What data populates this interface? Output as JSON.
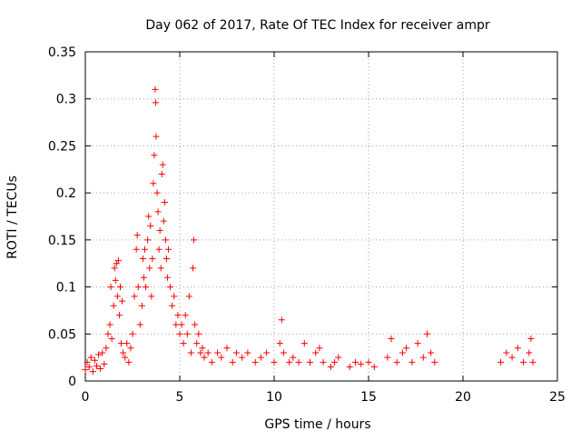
{
  "chart_data": {
    "type": "scatter",
    "title": "Day 062 of 2017, Rate Of TEC Index for receiver ampr",
    "xlabel": "GPS time / hours",
    "ylabel": "ROTI / TECUs",
    "xlim": [
      0,
      25
    ],
    "ylim": [
      0,
      0.35
    ],
    "grid": true,
    "marker": "plus",
    "color": "#ff0000",
    "x_ticks": [
      {
        "value": 0,
        "label": "0"
      },
      {
        "value": 5,
        "label": "5"
      },
      {
        "value": 10,
        "label": "10"
      },
      {
        "value": 15,
        "label": "15"
      },
      {
        "value": 20,
        "label": "20"
      },
      {
        "value": 25,
        "label": "25"
      }
    ],
    "y_ticks": [
      {
        "value": 0,
        "label": "0"
      },
      {
        "value": 0.05,
        "label": "0.05"
      },
      {
        "value": 0.1,
        "label": "0.1"
      },
      {
        "value": 0.15,
        "label": "0.15"
      },
      {
        "value": 0.2,
        "label": "0.2"
      },
      {
        "value": 0.25,
        "label": "0.25"
      },
      {
        "value": 0.3,
        "label": "0.3"
      },
      {
        "value": 0.35,
        "label": "0.35"
      }
    ],
    "points": [
      [
        0.0,
        0.012
      ],
      [
        0.1,
        0.02
      ],
      [
        0.2,
        0.015
      ],
      [
        0.3,
        0.025
      ],
      [
        0.4,
        0.01
      ],
      [
        0.5,
        0.022
      ],
      [
        0.6,
        0.016
      ],
      [
        0.7,
        0.028
      ],
      [
        0.8,
        0.013
      ],
      [
        0.9,
        0.03
      ],
      [
        1.0,
        0.018
      ],
      [
        1.1,
        0.035
      ],
      [
        1.2,
        0.05
      ],
      [
        1.3,
        0.06
      ],
      [
        1.35,
        0.1
      ],
      [
        1.4,
        0.045
      ],
      [
        1.5,
        0.08
      ],
      [
        1.55,
        0.12
      ],
      [
        1.6,
        0.107
      ],
      [
        1.65,
        0.125
      ],
      [
        1.7,
        0.09
      ],
      [
        1.75,
        0.128
      ],
      [
        1.8,
        0.07
      ],
      [
        1.85,
        0.1
      ],
      [
        1.9,
        0.04
      ],
      [
        1.95,
        0.085
      ],
      [
        2.0,
        0.03
      ],
      [
        2.1,
        0.025
      ],
      [
        2.2,
        0.04
      ],
      [
        2.3,
        0.02
      ],
      [
        2.4,
        0.035
      ],
      [
        2.5,
        0.05
      ],
      [
        2.6,
        0.09
      ],
      [
        2.7,
        0.14
      ],
      [
        2.75,
        0.155
      ],
      [
        2.8,
        0.1
      ],
      [
        2.9,
        0.06
      ],
      [
        3.0,
        0.08
      ],
      [
        3.05,
        0.13
      ],
      [
        3.1,
        0.11
      ],
      [
        3.15,
        0.14
      ],
      [
        3.2,
        0.1
      ],
      [
        3.3,
        0.15
      ],
      [
        3.35,
        0.175
      ],
      [
        3.4,
        0.12
      ],
      [
        3.45,
        0.165
      ],
      [
        3.5,
        0.09
      ],
      [
        3.55,
        0.13
      ],
      [
        3.6,
        0.21
      ],
      [
        3.65,
        0.24
      ],
      [
        3.7,
        0.31
      ],
      [
        3.72,
        0.296
      ],
      [
        3.75,
        0.26
      ],
      [
        3.8,
        0.2
      ],
      [
        3.85,
        0.18
      ],
      [
        3.9,
        0.14
      ],
      [
        3.95,
        0.16
      ],
      [
        4.0,
        0.12
      ],
      [
        4.05,
        0.22
      ],
      [
        4.1,
        0.23
      ],
      [
        4.15,
        0.17
      ],
      [
        4.2,
        0.19
      ],
      [
        4.25,
        0.15
      ],
      [
        4.3,
        0.13
      ],
      [
        4.35,
        0.11
      ],
      [
        4.4,
        0.14
      ],
      [
        4.5,
        0.1
      ],
      [
        4.6,
        0.08
      ],
      [
        4.7,
        0.09
      ],
      [
        4.8,
        0.06
      ],
      [
        4.9,
        0.07
      ],
      [
        5.0,
        0.05
      ],
      [
        5.1,
        0.06
      ],
      [
        5.2,
        0.04
      ],
      [
        5.3,
        0.07
      ],
      [
        5.4,
        0.05
      ],
      [
        5.5,
        0.09
      ],
      [
        5.6,
        0.03
      ],
      [
        5.7,
        0.12
      ],
      [
        5.75,
        0.15
      ],
      [
        5.8,
        0.06
      ],
      [
        5.9,
        0.04
      ],
      [
        6.0,
        0.05
      ],
      [
        6.1,
        0.03
      ],
      [
        6.2,
        0.035
      ],
      [
        6.3,
        0.025
      ],
      [
        6.5,
        0.03
      ],
      [
        6.7,
        0.02
      ],
      [
        7.0,
        0.03
      ],
      [
        7.2,
        0.025
      ],
      [
        7.5,
        0.035
      ],
      [
        7.8,
        0.02
      ],
      [
        8.0,
        0.03
      ],
      [
        8.3,
        0.025
      ],
      [
        8.6,
        0.03
      ],
      [
        9.0,
        0.02
      ],
      [
        9.3,
        0.025
      ],
      [
        9.6,
        0.03
      ],
      [
        10.0,
        0.02
      ],
      [
        10.3,
        0.04
      ],
      [
        10.4,
        0.065
      ],
      [
        10.5,
        0.03
      ],
      [
        10.8,
        0.02
      ],
      [
        11.0,
        0.025
      ],
      [
        11.3,
        0.02
      ],
      [
        11.6,
        0.04
      ],
      [
        11.9,
        0.02
      ],
      [
        12.2,
        0.03
      ],
      [
        12.4,
        0.035
      ],
      [
        12.6,
        0.02
      ],
      [
        13.0,
        0.015
      ],
      [
        13.2,
        0.02
      ],
      [
        13.4,
        0.025
      ],
      [
        14.0,
        0.015
      ],
      [
        14.3,
        0.02
      ],
      [
        14.6,
        0.018
      ],
      [
        15.0,
        0.02
      ],
      [
        15.3,
        0.015
      ],
      [
        16.0,
        0.025
      ],
      [
        16.2,
        0.045
      ],
      [
        16.5,
        0.02
      ],
      [
        16.8,
        0.03
      ],
      [
        17.0,
        0.035
      ],
      [
        17.3,
        0.02
      ],
      [
        17.6,
        0.04
      ],
      [
        17.9,
        0.025
      ],
      [
        18.1,
        0.05
      ],
      [
        18.3,
        0.03
      ],
      [
        18.5,
        0.02
      ],
      [
        22.0,
        0.02
      ],
      [
        22.3,
        0.03
      ],
      [
        22.6,
        0.025
      ],
      [
        22.9,
        0.035
      ],
      [
        23.2,
        0.02
      ],
      [
        23.5,
        0.03
      ],
      [
        23.6,
        0.045
      ],
      [
        23.7,
        0.02
      ]
    ]
  }
}
